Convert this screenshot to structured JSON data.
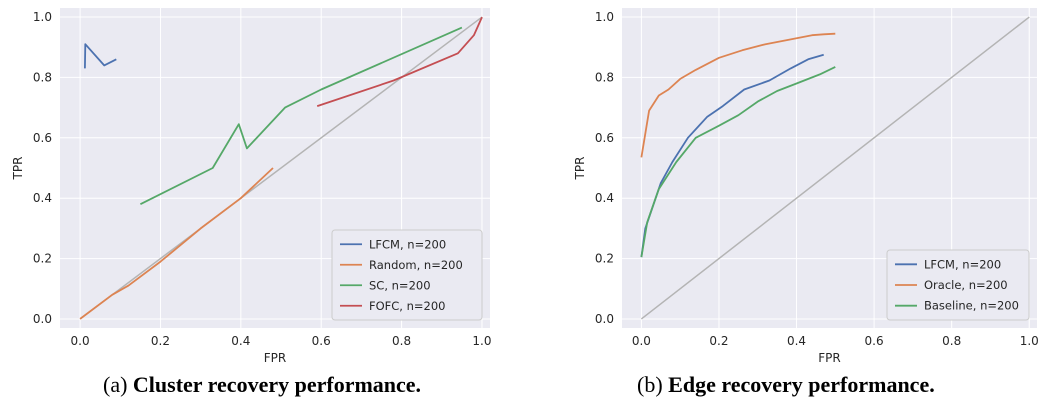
{
  "chart_data": [
    {
      "type": "line",
      "caption_label": "(a)",
      "caption_title": "Cluster recovery performance.",
      "xlabel": "FPR",
      "ylabel": "TPR",
      "xlim": [
        -0.05,
        1.02
      ],
      "ylim": [
        -0.03,
        1.03
      ],
      "xticks": [
        0.0,
        0.2,
        0.4,
        0.6,
        0.8,
        1.0
      ],
      "yticks": [
        0.0,
        0.2,
        0.4,
        0.6,
        0.8,
        1.0
      ],
      "xtick_labels": [
        "0.0",
        "0.2",
        "0.4",
        "0.6",
        "0.8",
        "1.0"
      ],
      "ytick_labels": [
        "0.0",
        "0.2",
        "0.4",
        "0.6",
        "0.8",
        "1.0"
      ],
      "grid": true,
      "legend_position": "lower-right",
      "diagonal_color": "#b4b4b4",
      "series": [
        {
          "name": "LFCM, n=200",
          "color": "#4c72b0",
          "x": [
            0.012,
            0.013,
            0.06,
            0.09
          ],
          "y": [
            0.83,
            0.91,
            0.84,
            0.86
          ]
        },
        {
          "name": "Random, n=200",
          "color": "#dd8452",
          "x": [
            0.0,
            0.03,
            0.08,
            0.12,
            0.2,
            0.3,
            0.4,
            0.48
          ],
          "y": [
            0.0,
            0.03,
            0.08,
            0.11,
            0.19,
            0.3,
            0.4,
            0.5
          ]
        },
        {
          "name": "SC, n=200",
          "color": "#55a868",
          "x": [
            0.15,
            0.33,
            0.395,
            0.415,
            0.51,
            0.6,
            0.95
          ],
          "y": [
            0.38,
            0.5,
            0.645,
            0.565,
            0.7,
            0.76,
            0.965
          ]
        },
        {
          "name": "FOFC, n=200",
          "color": "#c44e52",
          "x": [
            0.59,
            0.78,
            0.94,
            0.98,
            1.0
          ],
          "y": [
            0.705,
            0.79,
            0.88,
            0.94,
            1.0
          ]
        }
      ]
    },
    {
      "type": "line",
      "caption_label": "(b)",
      "caption_title": "Edge recovery performance.",
      "xlabel": "FPR",
      "ylabel": "TPR",
      "xlim": [
        -0.05,
        1.02
      ],
      "ylim": [
        -0.03,
        1.03
      ],
      "xticks": [
        0.0,
        0.2,
        0.4,
        0.6,
        0.8,
        1.0
      ],
      "yticks": [
        0.0,
        0.2,
        0.4,
        0.6,
        0.8,
        1.0
      ],
      "xtick_labels": [
        "0.0",
        "0.2",
        "0.4",
        "0.6",
        "0.8",
        "1.0"
      ],
      "ytick_labels": [
        "0.0",
        "0.2",
        "0.4",
        "0.6",
        "0.8",
        "1.0"
      ],
      "grid": true,
      "legend_position": "lower-right",
      "diagonal_color": "#b4b4b4",
      "series": [
        {
          "name": "LFCM, n=200",
          "color": "#4c72b0",
          "x": [
            0.0,
            0.01,
            0.05,
            0.08,
            0.12,
            0.17,
            0.21,
            0.265,
            0.33,
            0.385,
            0.43,
            0.47
          ],
          "y": [
            0.205,
            0.3,
            0.45,
            0.52,
            0.6,
            0.67,
            0.705,
            0.76,
            0.79,
            0.83,
            0.86,
            0.875
          ]
        },
        {
          "name": "Oracle, n=200",
          "color": "#dd8452",
          "x": [
            0.0,
            0.02,
            0.045,
            0.07,
            0.1,
            0.14,
            0.2,
            0.26,
            0.32,
            0.38,
            0.44,
            0.47,
            0.5
          ],
          "y": [
            0.535,
            0.69,
            0.74,
            0.76,
            0.795,
            0.825,
            0.865,
            0.89,
            0.91,
            0.925,
            0.94,
            0.943,
            0.945
          ]
        },
        {
          "name": "Baseline, n=200",
          "color": "#55a868",
          "x": [
            0.0,
            0.015,
            0.045,
            0.09,
            0.14,
            0.2,
            0.25,
            0.3,
            0.35,
            0.4,
            0.46,
            0.5
          ],
          "y": [
            0.205,
            0.32,
            0.43,
            0.52,
            0.6,
            0.64,
            0.675,
            0.72,
            0.755,
            0.78,
            0.81,
            0.835
          ]
        }
      ]
    }
  ]
}
